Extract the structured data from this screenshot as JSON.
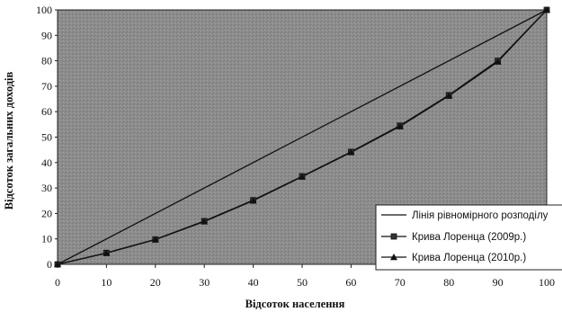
{
  "chart_data": {
    "type": "line",
    "xlabel": "Відсоток населення",
    "ylabel": "Відсоток загальних доходів",
    "xlim": [
      0,
      100
    ],
    "ylim": [
      0,
      100
    ],
    "x_ticks": [
      0,
      10,
      20,
      30,
      40,
      50,
      60,
      70,
      80,
      90,
      100
    ],
    "y_ticks": [
      0,
      10,
      20,
      30,
      40,
      50,
      60,
      70,
      80,
      90,
      100
    ],
    "grid": false,
    "legend_position": "bottom-right",
    "plot_background": "#8a8a8a",
    "series": [
      {
        "name": "Лінія рівномірного розподілу",
        "marker": "none",
        "x": [
          0,
          100
        ],
        "y": [
          0,
          100
        ]
      },
      {
        "name": "Крива Лоренца (2009р.)",
        "marker": "square",
        "x": [
          0,
          10,
          20,
          30,
          40,
          50,
          60,
          70,
          80,
          90,
          100
        ],
        "y": [
          0,
          4.5,
          9.8,
          17,
          25.2,
          34.6,
          44.2,
          54.5,
          66.5,
          80,
          100
        ]
      },
      {
        "name": "Крива Лоренца (2010р.)",
        "marker": "triangle",
        "x": [
          0,
          10,
          20,
          30,
          40,
          50,
          60,
          70,
          80,
          90,
          100
        ],
        "y": [
          0,
          4.4,
          9.7,
          16.8,
          25,
          34.4,
          44,
          54.2,
          66.2,
          79.6,
          100
        ]
      }
    ]
  }
}
